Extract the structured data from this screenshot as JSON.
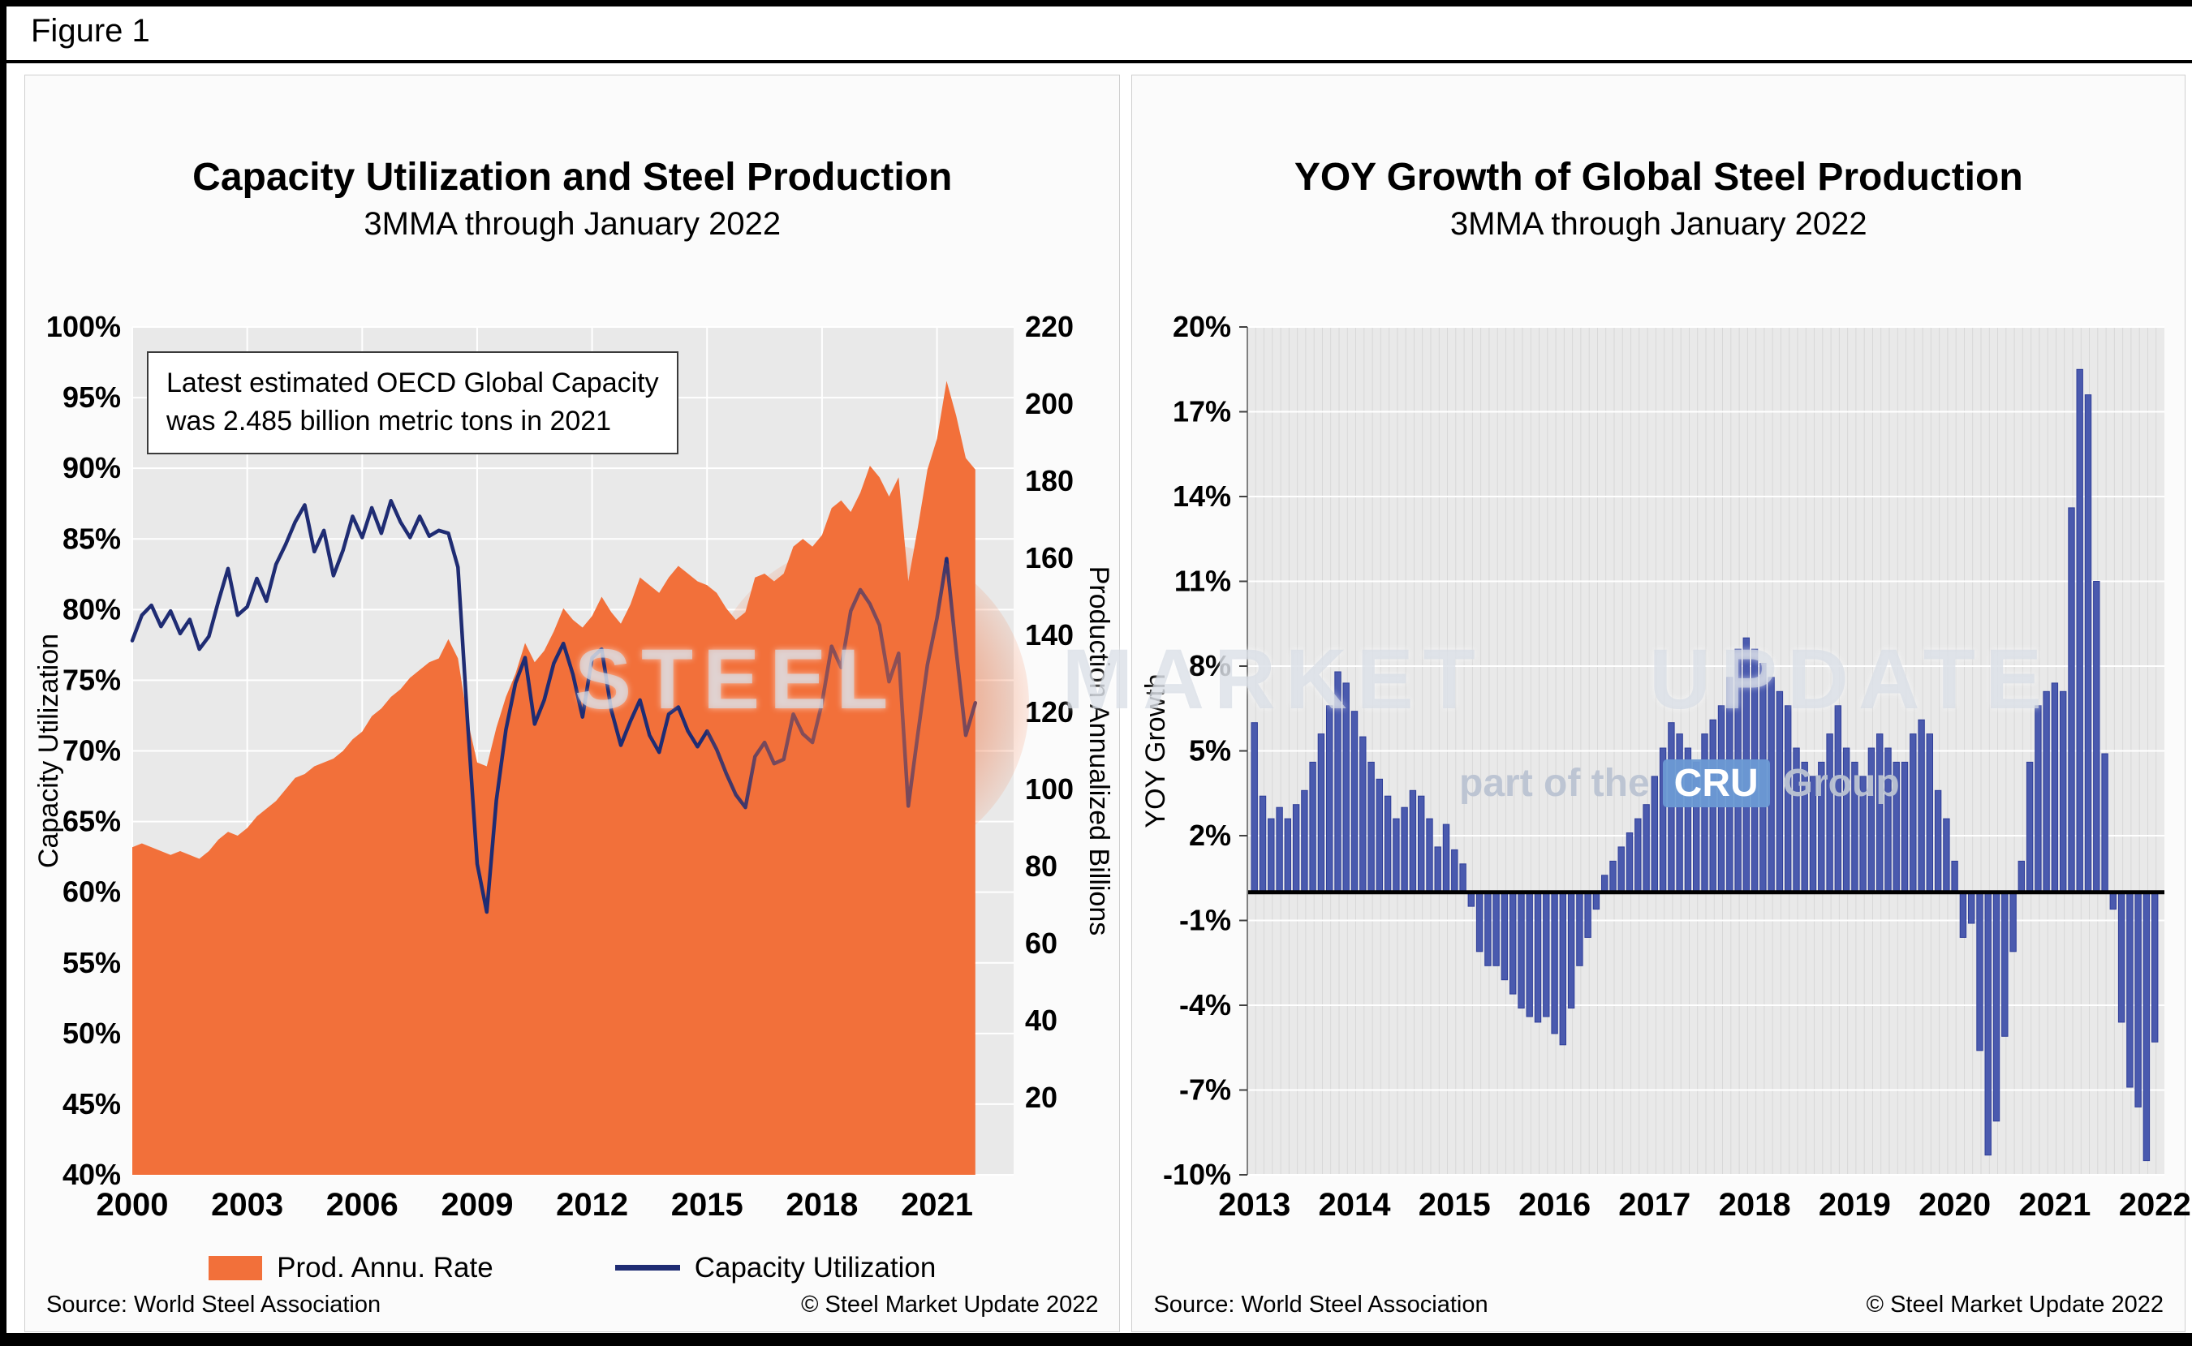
{
  "figure_label": "Figure 1",
  "watermark": {
    "word1": "STEEL",
    "word2": "MARKET",
    "word3": "UPDATE",
    "tagline_prefix": "part of the",
    "tagline_box": "CRU",
    "tagline_suffix": "Group"
  },
  "chart_data": [
    {
      "id": "capacity-utilization-and-steel-production",
      "type": "area+line",
      "title": "Capacity Utilization and Steel Production",
      "subtitle": "3MMA through January 2022",
      "annotation": {
        "line1": "Latest estimated OECD Global Capacity",
        "line2": "was 2.485 billion metric tons in 2021"
      },
      "x_axis": {
        "min": 2000,
        "max": 2023,
        "ticks": [
          2000,
          2003,
          2006,
          2009,
          2012,
          2015,
          2018,
          2021
        ],
        "tick_labels": [
          "2000",
          "2003",
          "2006",
          "2009",
          "2012",
          "2015",
          "2018",
          "2021"
        ]
      },
      "y_left": {
        "label": "Capacity Utilization",
        "min": 40,
        "max": 100,
        "tick_values": [
          100,
          95,
          90,
          85,
          80,
          75,
          70,
          65,
          60,
          55,
          50,
          45,
          40
        ],
        "tick_labels": [
          "100%",
          "95%",
          "90%",
          "85%",
          "80%",
          "75%",
          "70%",
          "65%",
          "60%",
          "55%",
          "50%",
          "45%",
          "40%"
        ]
      },
      "y_right": {
        "label": "Production Annualized Billions",
        "min": 0,
        "max": 220,
        "tick_values": [
          220,
          200,
          180,
          160,
          140,
          120,
          100,
          80,
          60,
          40,
          20
        ],
        "tick_labels": [
          "220",
          "200",
          "180",
          "160",
          "140",
          "120",
          "100",
          "80",
          "60",
          "40",
          "20"
        ]
      },
      "series": [
        {
          "name": "Prod. Annu. Rate",
          "type": "area",
          "axis": "right",
          "color": "#F2703A",
          "x_start": 2000,
          "x_step": 0.25,
          "values": [
            85,
            86,
            85,
            84,
            83,
            84,
            83,
            82,
            84,
            87,
            89,
            88,
            90,
            93,
            95,
            97,
            100,
            103,
            104,
            106,
            107,
            108,
            110,
            113,
            115,
            119,
            121,
            124,
            126,
            129,
            131,
            133,
            134,
            139,
            134,
            118,
            107,
            106,
            116,
            124,
            130,
            138,
            133,
            136,
            141,
            147,
            144,
            142,
            145,
            150,
            146,
            143,
            148,
            155,
            153,
            151,
            155,
            158,
            156,
            154,
            153,
            151,
            147,
            144,
            146,
            155,
            156,
            154,
            156,
            163,
            165,
            163,
            166,
            173,
            175,
            172,
            177,
            184,
            181,
            176,
            181,
            154,
            168,
            183,
            191,
            206,
            197,
            186,
            183
          ]
        },
        {
          "name": "Capacity Utilization",
          "type": "line",
          "axis": "left",
          "color": "#1F2C73",
          "x_start": 2000,
          "x_step": 0.25,
          "values": [
            77.8,
            79.6,
            80.3,
            78.8,
            79.9,
            78.3,
            79.3,
            77.2,
            78.1,
            80.6,
            82.9,
            79.6,
            80.2,
            82.2,
            80.6,
            83.2,
            84.6,
            86.2,
            87.4,
            84.1,
            85.6,
            82.4,
            84.2,
            86.6,
            85.1,
            87.2,
            85.4,
            87.7,
            86.2,
            85.1,
            86.6,
            85.2,
            85.6,
            85.4,
            83.0,
            72.0,
            62.0,
            58.6,
            66.5,
            71.5,
            74.8,
            76.6,
            71.9,
            73.6,
            76.2,
            77.6,
            75.4,
            72.4,
            76.6,
            77.2,
            72.9,
            70.4,
            72.1,
            73.6,
            71.1,
            69.9,
            72.6,
            73.1,
            71.4,
            70.3,
            71.4,
            70.1,
            68.4,
            66.9,
            66.0,
            69.6,
            70.6,
            69.1,
            69.4,
            72.6,
            71.2,
            70.6,
            73.4,
            77.4,
            75.9,
            79.9,
            81.4,
            80.4,
            78.9,
            74.9,
            76.9,
            66.1,
            71.2,
            76.1,
            79.4,
            83.6,
            77.1,
            71.1,
            73.4
          ]
        }
      ],
      "legend": [
        {
          "label": "Prod. Annu. Rate",
          "swatch": "area",
          "color": "#F2703A"
        },
        {
          "label": "Capacity Utilization",
          "swatch": "line",
          "color": "#1F2C73"
        }
      ],
      "source": "Source: World Steel Association",
      "copyright": "© Steel Market Update 2022"
    },
    {
      "id": "yoy-growth-global-steel-production",
      "type": "bar",
      "title": "YOY Growth of Global Steel Production",
      "subtitle": "3MMA through January 2022",
      "y_axis": {
        "label": "YOY Growth",
        "min": -10,
        "max": 20,
        "tick_values": [
          20,
          17,
          14,
          11,
          8,
          5,
          2,
          -1,
          -4,
          -7,
          -10
        ],
        "tick_labels": [
          "20%",
          "17%",
          "14%",
          "11%",
          "8%",
          "5%",
          "2%",
          "-1%",
          "-4%",
          "-7%",
          "-10%"
        ]
      },
      "x_axis": {
        "tick_years": [
          2013,
          2014,
          2015,
          2016,
          2017,
          2018,
          2019,
          2020,
          2021,
          2022
        ],
        "tick_labels": [
          "2013",
          "2014",
          "2015",
          "2016",
          "2017",
          "2018",
          "2019",
          "2020",
          "2021",
          "2022"
        ]
      },
      "bar_color": "#4A5AAE",
      "bar_edge": "#2F3E99",
      "x_start_year": 2013,
      "x_step_months": 1,
      "values": [
        6.0,
        3.4,
        2.6,
        3.0,
        2.6,
        3.1,
        3.6,
        4.6,
        5.6,
        6.6,
        7.8,
        7.4,
        6.4,
        5.5,
        4.6,
        4.0,
        3.4,
        2.6,
        3.0,
        3.6,
        3.4,
        2.6,
        1.6,
        2.4,
        1.5,
        1.0,
        -0.5,
        -2.1,
        -2.6,
        -2.6,
        -3.1,
        -3.6,
        -4.1,
        -4.4,
        -4.6,
        -4.4,
        -5.0,
        -5.4,
        -4.1,
        -2.6,
        -1.6,
        -0.6,
        0.6,
        1.1,
        1.6,
        2.1,
        2.6,
        3.1,
        4.1,
        5.1,
        6.0,
        5.6,
        5.1,
        4.6,
        5.6,
        6.1,
        6.6,
        7.6,
        8.6,
        9.0,
        8.6,
        8.1,
        7.6,
        7.1,
        6.6,
        5.1,
        4.6,
        4.1,
        4.6,
        5.6,
        6.6,
        5.1,
        4.6,
        4.1,
        5.1,
        5.6,
        5.1,
        4.6,
        4.6,
        5.6,
        6.1,
        5.6,
        3.6,
        2.6,
        1.1,
        -1.6,
        -1.1,
        -5.6,
        -9.3,
        -8.1,
        -5.1,
        -2.1,
        1.1,
        4.6,
        6.6,
        7.1,
        7.4,
        7.1,
        13.6,
        18.5,
        17.6,
        11.0,
        4.9,
        -0.6,
        -4.6,
        -6.9,
        -7.6,
        -9.5,
        -5.3
      ],
      "source": "Source: World Steel Association",
      "copyright": "© Steel Market Update 2022"
    }
  ]
}
